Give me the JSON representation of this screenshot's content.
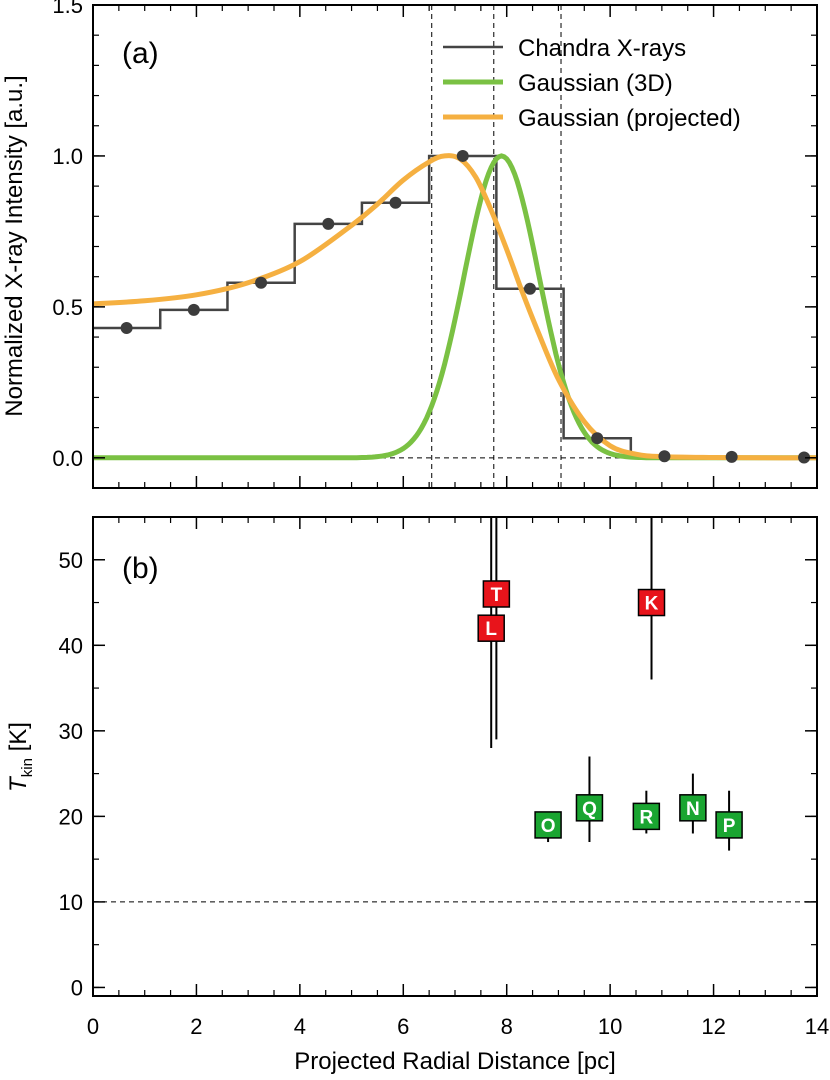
{
  "xlabel": "Projected Radial Distance [pc]",
  "x_ticks": [
    "0",
    "2",
    "4",
    "6",
    "8",
    "10",
    "12",
    "14"
  ],
  "chart_data": [
    {
      "type": "line",
      "panel_label": "(a)",
      "ylabel": "Normalized X-ray Intensity [a.u.]",
      "xlim": [
        0,
        14
      ],
      "ylim": [
        -0.1,
        1.5
      ],
      "y_ticks": [
        "0.0",
        "0.5",
        "1.0",
        "1.5"
      ],
      "legend_position": "top-right",
      "legend": [
        "Chandra X-rays",
        "Gaussian (3D)",
        "Gaussian (projected)"
      ],
      "colors": {
        "chandra": "#444444",
        "gauss3d": "#7ac143",
        "gaussproj": "#f5b041"
      },
      "histogram": {
        "name": "Chandra X-rays",
        "bin_edges": [
          0,
          1.3,
          2.6,
          3.9,
          5.2,
          6.5,
          7.8,
          9.1,
          10.4,
          11.7,
          13.0,
          14.0
        ],
        "values": [
          0.43,
          0.49,
          0.58,
          0.775,
          0.845,
          1.0,
          0.56,
          0.065,
          0.005,
          0.003,
          0.001
        ]
      },
      "points": {
        "x": [
          0.65,
          1.95,
          3.25,
          4.55,
          5.85,
          7.15,
          8.45,
          9.75,
          11.05,
          12.35,
          13.75
        ],
        "y": [
          0.43,
          0.49,
          0.58,
          0.775,
          0.845,
          1.0,
          0.56,
          0.065,
          0.005,
          0.003,
          0.001
        ]
      },
      "gaussian_3d": {
        "name": "Gaussian (3D)",
        "peak_x": 7.9,
        "sigma": 0.72,
        "amplitude": 1.0
      },
      "gaussian_projected": {
        "name": "Gaussian (projected)",
        "x": [
          0,
          1,
          2,
          3,
          4,
          5,
          5.5,
          6,
          6.5,
          6.8,
          7.1,
          7.4,
          7.7,
          8.0,
          8.3,
          8.6,
          9.0,
          9.5,
          10.0,
          10.5,
          11.0,
          12.0,
          13.0,
          14.0
        ],
        "y": [
          0.51,
          0.52,
          0.54,
          0.58,
          0.65,
          0.77,
          0.84,
          0.92,
          0.98,
          1.0,
          0.99,
          0.93,
          0.82,
          0.69,
          0.55,
          0.42,
          0.26,
          0.12,
          0.04,
          0.012,
          0.004,
          0.001,
          0.0,
          0.0
        ]
      },
      "vertical_lines_x": [
        6.55,
        7.75,
        9.05
      ],
      "horizontal_line_y": 0.0
    },
    {
      "type": "scatter",
      "panel_label": "(b)",
      "ylabel": "T",
      "ylabel_sub": "kin",
      "ylabel_unit": " [K]",
      "xlim": [
        0,
        14
      ],
      "ylim": [
        -1,
        55
      ],
      "y_ticks": [
        "0",
        "10",
        "20",
        "30",
        "40",
        "50"
      ],
      "horizontal_line_y": 10,
      "points": [
        {
          "label": "T",
          "x": 7.8,
          "y": 46,
          "err_low": 29,
          "err_high": 55,
          "color": "#e8141b"
        },
        {
          "label": "L",
          "x": 7.7,
          "y": 42,
          "err_low": 28,
          "err_high": 55,
          "color": "#e8141b"
        },
        {
          "label": "K",
          "x": 10.8,
          "y": 45,
          "err_low": 36,
          "err_high": 55,
          "color": "#e8141b"
        },
        {
          "label": "O",
          "x": 8.8,
          "y": 19,
          "err_low": 17,
          "err_high": 20,
          "color": "#1aa531"
        },
        {
          "label": "Q",
          "x": 9.6,
          "y": 21,
          "err_low": 17,
          "err_high": 27,
          "color": "#1aa531"
        },
        {
          "label": "R",
          "x": 10.7,
          "y": 20,
          "err_low": 18,
          "err_high": 23,
          "color": "#1aa531"
        },
        {
          "label": "N",
          "x": 11.6,
          "y": 21,
          "err_low": 18,
          "err_high": 25,
          "color": "#1aa531"
        },
        {
          "label": "P",
          "x": 12.3,
          "y": 19,
          "err_low": 16,
          "err_high": 23,
          "color": "#1aa531"
        }
      ]
    }
  ]
}
